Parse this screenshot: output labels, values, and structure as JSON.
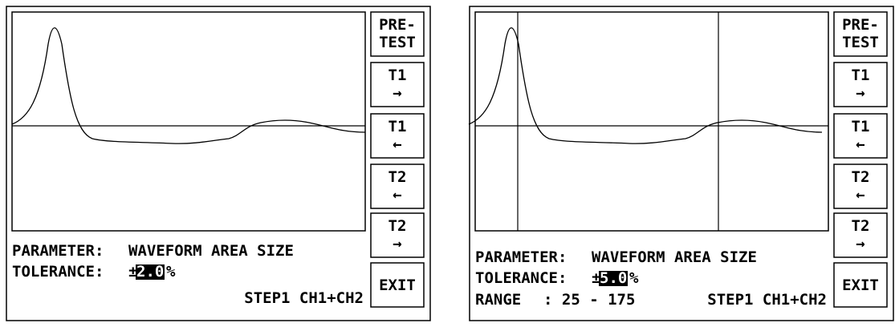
{
  "screens": [
    {
      "buttons": [
        [
          "PRE-",
          "TEST"
        ],
        [
          "T1",
          "→"
        ],
        [
          "T1",
          "←"
        ],
        [
          "T2",
          "←"
        ],
        [
          "T2",
          "→"
        ],
        [
          "EXIT"
        ]
      ],
      "parameter": {
        "label": "PARAMETER:",
        "value": "WAVEFORM AREA SIZE"
      },
      "tolerance": {
        "label": "TOLERANCE:",
        "sign": "±",
        "value": "2.0",
        "unit": "%"
      },
      "status": "STEP1 CH1+CH2"
    },
    {
      "buttons": [
        [
          "PRE-",
          "TEST"
        ],
        [
          "T1",
          "→"
        ],
        [
          "T1",
          "←"
        ],
        [
          "T2",
          "←"
        ],
        [
          "T2",
          "→"
        ],
        [
          "EXIT"
        ]
      ],
      "parameter": {
        "label": "PARAMETER:",
        "value": "WAVEFORM AREA SIZE"
      },
      "tolerance": {
        "label": "TOLERANCE:",
        "sign": "±",
        "value": "5.0",
        "unit": "%"
      },
      "range": {
        "label": "RANGE",
        "value": ": 25 - 175"
      },
      "status": "STEP1 CH1+CH2"
    }
  ]
}
